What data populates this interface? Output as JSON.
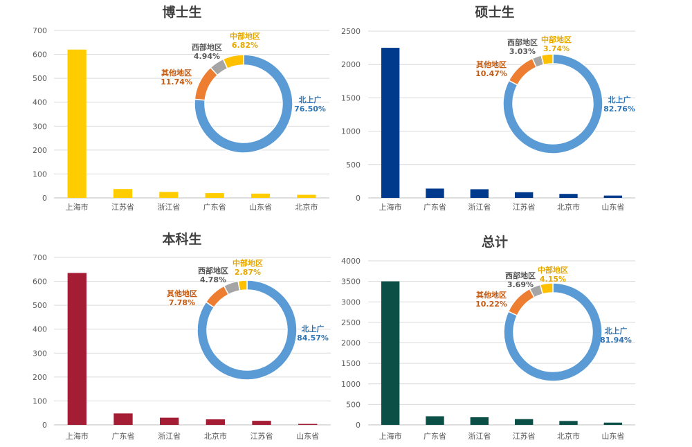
{
  "chart_data": [
    {
      "type": "bar",
      "title": "博士生",
      "bar_color": "#FFCC00",
      "categories": [
        "上海市",
        "江苏省",
        "浙江省",
        "广东省",
        "山东省",
        "北京市"
      ],
      "values": [
        620,
        37,
        25,
        20,
        18,
        13
      ],
      "ylim": [
        0,
        700
      ],
      "yticks": [
        "0",
        "100",
        "200",
        "300",
        "400",
        "500",
        "600",
        "700"
      ],
      "grid": true,
      "inset": {
        "type": "pie",
        "slices": [
          {
            "label": "北上广",
            "value_label": "76.50%",
            "value": 76.5,
            "color": "#5B9BD5",
            "label_color": "#2E75B6"
          },
          {
            "label": "其他地区",
            "value_label": "11.74%",
            "value": 11.74,
            "color": "#ED7D31",
            "label_color": "#C55A11"
          },
          {
            "label": "西部地区",
            "value_label": "4.94%",
            "value": 4.94,
            "color": "#A5A5A5",
            "label_color": "#595959"
          },
          {
            "label": "中部地区",
            "value_label": "6.82%",
            "value": 6.82,
            "color": "#FFC000",
            "label_color": "#E6A800"
          }
        ]
      }
    },
    {
      "type": "bar",
      "title": "硕士生",
      "bar_color": "#003A8C",
      "categories": [
        "上海市",
        "广东省",
        "浙江省",
        "江苏省",
        "北京市",
        "山东省"
      ],
      "values": [
        2250,
        140,
        130,
        85,
        60,
        35
      ],
      "ylim": [
        0,
        2500
      ],
      "yticks": [
        "0",
        "500",
        "1000",
        "1500",
        "2000",
        "2500"
      ],
      "grid": true,
      "inset": {
        "type": "pie",
        "slices": [
          {
            "label": "北上广",
            "value_label": "82.76%",
            "value": 82.76,
            "color": "#5B9BD5",
            "label_color": "#2E75B6"
          },
          {
            "label": "其他地区",
            "value_label": "10.47%",
            "value": 10.47,
            "color": "#ED7D31",
            "label_color": "#C55A11"
          },
          {
            "label": "西部地区",
            "value_label": "3.03%",
            "value": 3.03,
            "color": "#A5A5A5",
            "label_color": "#595959"
          },
          {
            "label": "中部地区",
            "value_label": "3.74%",
            "value": 3.74,
            "color": "#FFC000",
            "label_color": "#E6A800"
          }
        ]
      }
    },
    {
      "type": "bar",
      "title": "本科生",
      "bar_color": "#A51D35",
      "categories": [
        "上海市",
        "广东省",
        "浙江省",
        "北京市",
        "江苏省",
        "山东省"
      ],
      "values": [
        635,
        48,
        30,
        23,
        17,
        4
      ],
      "ylim": [
        0,
        700
      ],
      "yticks": [
        "0",
        "100",
        "200",
        "300",
        "400",
        "500",
        "600",
        "700"
      ],
      "grid": true,
      "inset": {
        "type": "pie",
        "slices": [
          {
            "label": "北上广",
            "value_label": "84.57%",
            "value": 84.57,
            "color": "#5B9BD5",
            "label_color": "#2E75B6"
          },
          {
            "label": "其他地区",
            "value_label": "7.78%",
            "value": 7.78,
            "color": "#ED7D31",
            "label_color": "#C55A11"
          },
          {
            "label": "西部地区",
            "value_label": "4.78%",
            "value": 4.78,
            "color": "#A5A5A5",
            "label_color": "#595959"
          },
          {
            "label": "中部地区",
            "value_label": "2.87%",
            "value": 2.87,
            "color": "#FFC000",
            "label_color": "#E6A800"
          }
        ]
      }
    },
    {
      "type": "bar",
      "title": "总计",
      "bar_color": "#0B4F47",
      "categories": [
        "上海市",
        "广东省",
        "浙江省",
        "江苏省",
        "北京市",
        "山东省"
      ],
      "values": [
        3500,
        210,
        185,
        140,
        95,
        55
      ],
      "ylim": [
        0,
        4000
      ],
      "yticks": [
        "0",
        "500",
        "1000",
        "1500",
        "2000",
        "2500",
        "3000",
        "3500",
        "4000"
      ],
      "grid": true,
      "inset": {
        "type": "pie",
        "slices": [
          {
            "label": "北上广",
            "value_label": "81.94%",
            "value": 81.94,
            "color": "#5B9BD5",
            "label_color": "#2E75B6"
          },
          {
            "label": "其他地区",
            "value_label": "10.22%",
            "value": 10.22,
            "color": "#ED7D31",
            "label_color": "#C55A11"
          },
          {
            "label": "西部地区",
            "value_label": "3.69%",
            "value": 3.69,
            "color": "#A5A5A5",
            "label_color": "#595959"
          },
          {
            "label": "中部地区",
            "value_label": "4.15%",
            "value": 4.15,
            "color": "#FFC000",
            "label_color": "#E6A800"
          }
        ]
      }
    }
  ]
}
